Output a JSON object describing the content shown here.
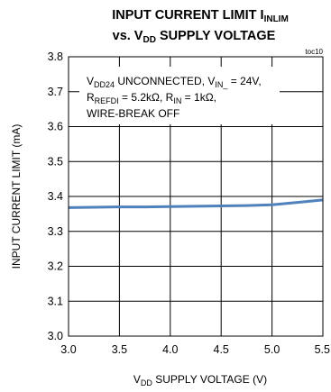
{
  "chart_data": {
    "type": "line",
    "title": {
      "line1_main": "INPUT CURRENT LIMIT I",
      "line1_sub": "INLIM",
      "line2_pre": "vs. V",
      "line2_sub": "DD",
      "line2_post": " SUPPLY VOLTAGE"
    },
    "figure_code": "toc10",
    "xlabel": {
      "pre": "V",
      "sub": "DD",
      "post": " SUPPLY VOLTAGE (V)"
    },
    "ylabel": "INPUT CURRENT LIMIT (mA)",
    "xlim": [
      3.0,
      5.5
    ],
    "ylim": [
      3.0,
      3.8
    ],
    "xticks": [
      "3.0",
      "3.5",
      "4.0",
      "4.5",
      "5.0",
      "5.5"
    ],
    "yticks": [
      "3.0",
      "3.1",
      "3.2",
      "3.3",
      "3.4",
      "3.5",
      "3.6",
      "3.7",
      "3.8"
    ],
    "grid": true,
    "line_color": "#4f81bd",
    "annotation": {
      "l1_a": "V",
      "l1_a_sub": "DD24",
      "l1_b": " UNCONNECTED,  V",
      "l1_b_sub": "IN_",
      "l1_c": " = 24V,",
      "l2_a": "R",
      "l2_a_sub": "REFDI",
      "l2_b": " = 5.2kΩ, R",
      "l2_b_sub": "IN",
      "l2_c": " = 1kΩ,",
      "l3": "WIRE-BREAK OFF"
    },
    "series": [
      {
        "x": [
          3.0,
          3.25,
          3.5,
          3.75,
          4.0,
          4.25,
          4.5,
          4.75,
          5.0,
          5.25,
          5.5
        ],
        "y": [
          3.368,
          3.369,
          3.37,
          3.37,
          3.371,
          3.372,
          3.373,
          3.374,
          3.376,
          3.383,
          3.39
        ]
      }
    ]
  }
}
